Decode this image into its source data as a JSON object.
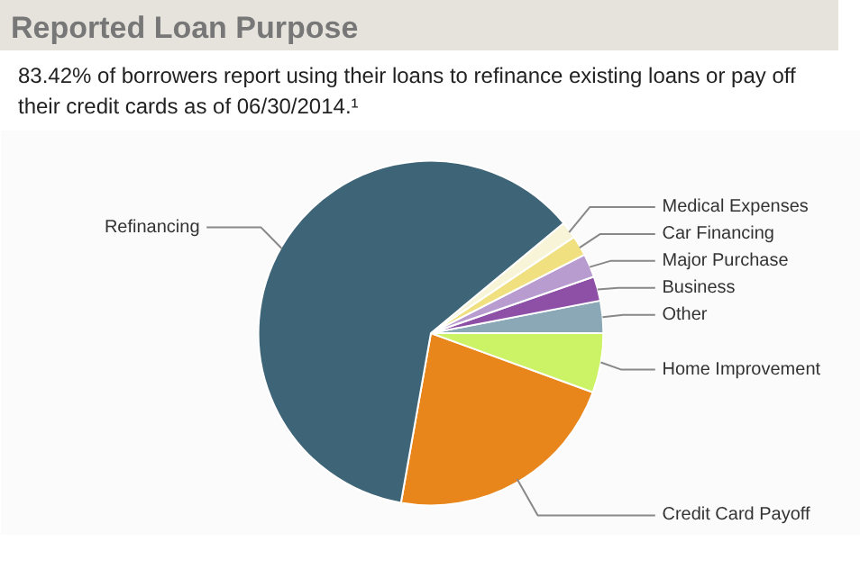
{
  "chart_data": {
    "type": "pie",
    "title": "Reported Loan Purpose",
    "subtitle": "83.42% of borrowers report using their loans to refinance existing loans or pay off their credit cards as of 06/30/2014.¹",
    "categories": [
      "Credit Card Payoff",
      "Home Improvement",
      "Other",
      "Business",
      "Major Purchase",
      "Car Financing",
      "Medical Expenses",
      "Refinancing"
    ],
    "values": [
      22.2,
      5.6,
      3.0,
      2.3,
      2.2,
      1.9,
      1.6,
      61.2
    ],
    "colors": [
      "#e8861c",
      "#ccf266",
      "#8aa8b5",
      "#8e4fa6",
      "#b89cd0",
      "#f0e080",
      "#f8f4d8",
      "#3e6477"
    ]
  }
}
